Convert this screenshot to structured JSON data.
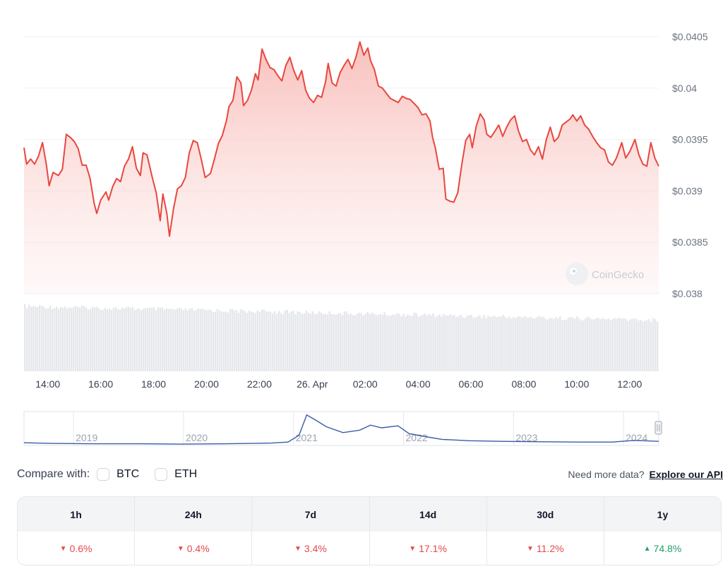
{
  "chart_data": {
    "type": "line",
    "y_ticks": [
      "$0.0405",
      "$0.04",
      "$0.0395",
      "$0.039",
      "$0.0385",
      "$0.038"
    ],
    "y_tick_values": [
      0.0405,
      0.04,
      0.0395,
      0.039,
      0.0385,
      0.038
    ],
    "ylim": [
      0.038,
      0.0405
    ],
    "x_ticks": [
      "14:00",
      "16:00",
      "18:00",
      "20:00",
      "22:00",
      "26. Apr",
      "02:00",
      "04:00",
      "06:00",
      "08:00",
      "10:00",
      "12:00"
    ],
    "x_tick_hours": [
      14,
      16,
      18,
      20,
      22,
      24,
      26,
      28,
      30,
      32,
      34,
      36
    ],
    "xlim_hours": [
      13.1,
      37.1
    ],
    "price_points": [
      [
        13.1,
        0.03942
      ],
      [
        13.2,
        0.03926
      ],
      [
        13.35,
        0.03931
      ],
      [
        13.5,
        0.03926
      ],
      [
        13.65,
        0.03934
      ],
      [
        13.8,
        0.03947
      ],
      [
        13.95,
        0.03925
      ],
      [
        14.05,
        0.03905
      ],
      [
        14.2,
        0.03918
      ],
      [
        14.4,
        0.03915
      ],
      [
        14.55,
        0.03921
      ],
      [
        14.7,
        0.03955
      ],
      [
        14.85,
        0.03952
      ],
      [
        15.0,
        0.03948
      ],
      [
        15.15,
        0.03941
      ],
      [
        15.3,
        0.03925
      ],
      [
        15.45,
        0.03925
      ],
      [
        15.6,
        0.03912
      ],
      [
        15.75,
        0.03888
      ],
      [
        15.85,
        0.03878
      ],
      [
        16.0,
        0.03891
      ],
      [
        16.2,
        0.03899
      ],
      [
        16.3,
        0.03891
      ],
      [
        16.45,
        0.03904
      ],
      [
        16.6,
        0.03912
      ],
      [
        16.75,
        0.03909
      ],
      [
        16.9,
        0.03924
      ],
      [
        17.05,
        0.03931
      ],
      [
        17.2,
        0.03943
      ],
      [
        17.35,
        0.03922
      ],
      [
        17.5,
        0.03915
      ],
      [
        17.6,
        0.03937
      ],
      [
        17.75,
        0.03935
      ],
      [
        17.95,
        0.03913
      ],
      [
        18.1,
        0.03898
      ],
      [
        18.25,
        0.03871
      ],
      [
        18.35,
        0.03897
      ],
      [
        18.5,
        0.03878
      ],
      [
        18.6,
        0.03856
      ],
      [
        18.75,
        0.03882
      ],
      [
        18.9,
        0.03902
      ],
      [
        19.05,
        0.03905
      ],
      [
        19.2,
        0.03913
      ],
      [
        19.35,
        0.03937
      ],
      [
        19.5,
        0.03949
      ],
      [
        19.65,
        0.03947
      ],
      [
        19.8,
        0.03931
      ],
      [
        19.95,
        0.03913
      ],
      [
        20.15,
        0.03917
      ],
      [
        20.3,
        0.03931
      ],
      [
        20.45,
        0.03946
      ],
      [
        20.6,
        0.03954
      ],
      [
        20.75,
        0.03968
      ],
      [
        20.85,
        0.03982
      ],
      [
        21.0,
        0.03988
      ],
      [
        21.15,
        0.04011
      ],
      [
        21.3,
        0.04005
      ],
      [
        21.4,
        0.03983
      ],
      [
        21.55,
        0.03988
      ],
      [
        21.7,
        0.03998
      ],
      [
        21.85,
        0.04014
      ],
      [
        21.95,
        0.04008
      ],
      [
        22.1,
        0.04038
      ],
      [
        22.25,
        0.04028
      ],
      [
        22.4,
        0.0402
      ],
      [
        22.55,
        0.04018
      ],
      [
        22.7,
        0.04012
      ],
      [
        22.85,
        0.04007
      ],
      [
        23.0,
        0.04022
      ],
      [
        23.15,
        0.0403
      ],
      [
        23.3,
        0.04017
      ],
      [
        23.45,
        0.04008
      ],
      [
        23.6,
        0.04017
      ],
      [
        23.75,
        0.03998
      ],
      [
        23.9,
        0.0399
      ],
      [
        24.05,
        0.03986
      ],
      [
        24.2,
        0.03993
      ],
      [
        24.35,
        0.03991
      ],
      [
        24.5,
        0.04006
      ],
      [
        24.6,
        0.04024
      ],
      [
        24.75,
        0.04005
      ],
      [
        24.9,
        0.04002
      ],
      [
        25.05,
        0.04015
      ],
      [
        25.2,
        0.04022
      ],
      [
        25.35,
        0.04028
      ],
      [
        25.5,
        0.04019
      ],
      [
        25.65,
        0.0403
      ],
      [
        25.8,
        0.04045
      ],
      [
        25.95,
        0.04032
      ],
      [
        26.1,
        0.04039
      ],
      [
        26.2,
        0.04027
      ],
      [
        26.35,
        0.04018
      ],
      [
        26.5,
        0.04002
      ],
      [
        26.65,
        0.04
      ],
      [
        26.8,
        0.03995
      ],
      [
        26.95,
        0.0399
      ],
      [
        27.1,
        0.03988
      ],
      [
        27.25,
        0.03986
      ],
      [
        27.4,
        0.03992
      ],
      [
        27.55,
        0.0399
      ],
      [
        27.7,
        0.03989
      ],
      [
        27.85,
        0.03985
      ],
      [
        28.0,
        0.03981
      ],
      [
        28.15,
        0.03974
      ],
      [
        28.3,
        0.03975
      ],
      [
        28.45,
        0.03968
      ],
      [
        28.55,
        0.03952
      ],
      [
        28.65,
        0.03942
      ],
      [
        28.8,
        0.03921
      ],
      [
        28.95,
        0.03922
      ],
      [
        29.05,
        0.03892
      ],
      [
        29.2,
        0.0389
      ],
      [
        29.35,
        0.03889
      ],
      [
        29.5,
        0.03898
      ],
      [
        29.65,
        0.03925
      ],
      [
        29.8,
        0.03949
      ],
      [
        29.95,
        0.03955
      ],
      [
        30.05,
        0.03942
      ],
      [
        30.2,
        0.03963
      ],
      [
        30.35,
        0.03975
      ],
      [
        30.5,
        0.03969
      ],
      [
        30.6,
        0.03955
      ],
      [
        30.75,
        0.03952
      ],
      [
        30.9,
        0.03958
      ],
      [
        31.05,
        0.03964
      ],
      [
        31.2,
        0.03953
      ],
      [
        31.35,
        0.03962
      ],
      [
        31.5,
        0.03969
      ],
      [
        31.65,
        0.03973
      ],
      [
        31.8,
        0.03958
      ],
      [
        31.95,
        0.03948
      ],
      [
        32.1,
        0.0395
      ],
      [
        32.25,
        0.0394
      ],
      [
        32.4,
        0.03935
      ],
      [
        32.55,
        0.03943
      ],
      [
        32.7,
        0.03931
      ],
      [
        32.85,
        0.0395
      ],
      [
        33.0,
        0.03962
      ],
      [
        33.15,
        0.03948
      ],
      [
        33.3,
        0.03952
      ],
      [
        33.45,
        0.03964
      ],
      [
        33.6,
        0.03967
      ],
      [
        33.75,
        0.0397
      ],
      [
        33.85,
        0.03974
      ],
      [
        34.0,
        0.03968
      ],
      [
        34.15,
        0.03973
      ],
      [
        34.3,
        0.03964
      ],
      [
        34.45,
        0.0396
      ],
      [
        34.6,
        0.03953
      ],
      [
        34.75,
        0.03947
      ],
      [
        34.9,
        0.03942
      ],
      [
        35.05,
        0.0394
      ],
      [
        35.2,
        0.03928
      ],
      [
        35.35,
        0.03925
      ],
      [
        35.5,
        0.03932
      ],
      [
        35.7,
        0.03947
      ],
      [
        35.85,
        0.03932
      ],
      [
        36.0,
        0.03938
      ],
      [
        36.2,
        0.0395
      ],
      [
        36.35,
        0.03935
      ],
      [
        36.5,
        0.03926
      ],
      [
        36.65,
        0.03924
      ],
      [
        36.8,
        0.03947
      ],
      [
        36.95,
        0.03932
      ],
      [
        37.1,
        0.03924
      ]
    ],
    "navigator": {
      "x_ticks": [
        "2019",
        "2020",
        "2021",
        "2022",
        "2023",
        "2024"
      ],
      "x_tick_years": [
        2019,
        2020,
        2021,
        2022,
        2023,
        2024
      ],
      "xlim_years": [
        2018.55,
        2024.32
      ]
    }
  },
  "watermark": "CoinGecko",
  "compare": {
    "label": "Compare with:",
    "options": [
      {
        "name": "BTC"
      },
      {
        "name": "ETH"
      }
    ]
  },
  "more_data": {
    "prefix": "Need more data?",
    "link": "Explore our API"
  },
  "performance": {
    "periods": [
      "1h",
      "24h",
      "7d",
      "14d",
      "30d",
      "1y"
    ],
    "changes": [
      {
        "value": "0.6%",
        "direction": "down"
      },
      {
        "value": "0.4%",
        "direction": "down"
      },
      {
        "value": "3.4%",
        "direction": "down"
      },
      {
        "value": "17.1%",
        "direction": "down"
      },
      {
        "value": "11.2%",
        "direction": "down"
      },
      {
        "value": "74.8%",
        "direction": "up"
      }
    ]
  },
  "colors": {
    "line": "#e8473d",
    "fill_top": "#f9c6c3",
    "navigator_line": "#3b5aa6",
    "volume": "#e5e7eb",
    "negative": "#e5484d",
    "positive": "#22a06b"
  }
}
